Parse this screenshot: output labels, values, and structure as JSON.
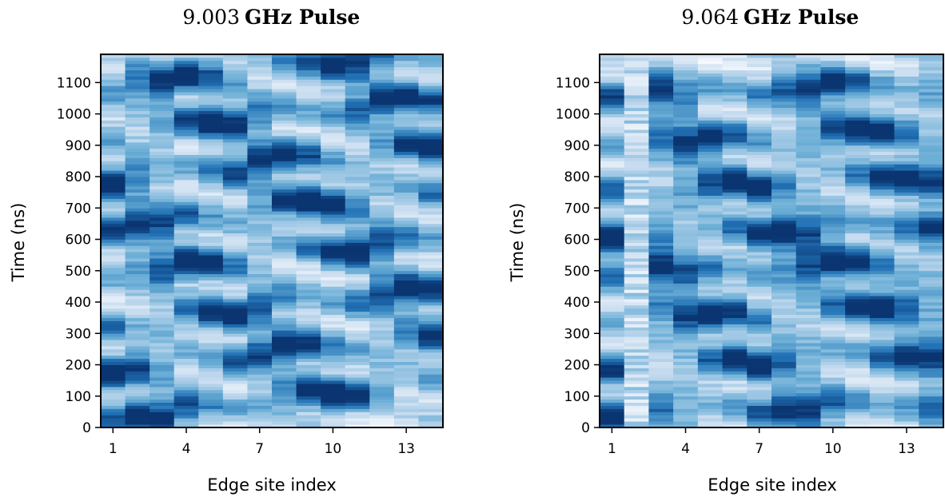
{
  "chart_data": [
    {
      "type": "heatmap",
      "title_value": "9.003",
      "title_text": "GHz Pulse",
      "xlabel": "Edge site index",
      "ylabel": "Time (ns)",
      "x_ticks": [
        "1",
        "4",
        "7",
        "10",
        "13"
      ],
      "y_ticks": [
        "0",
        "100",
        "200",
        "300",
        "400",
        "500",
        "600",
        "700",
        "800",
        "900",
        "1000",
        "1100"
      ],
      "sites": [
        1,
        2,
        3,
        4,
        5,
        6,
        7,
        8,
        9,
        10,
        11,
        12,
        13,
        14
      ],
      "xlim": [
        0.5,
        14.5
      ],
      "ylim": [
        0,
        1190
      ],
      "colormap": [
        "#ffffff",
        "#c6dbef",
        "#6baed6",
        "#2171b5",
        "#08306b"
      ],
      "grid": false,
      "intensity_profile": {
        "description_of_bands": "diagonal stripes of dark intensity drifting to later times with site index",
        "band_centers_ns": [
          30,
          180,
          330,
          490,
          640,
          790,
          940,
          1090
        ],
        "drift_ns_per_site": 9
      }
    },
    {
      "type": "heatmap",
      "title_value": "9.064",
      "title_text": "GHz Pulse",
      "xlabel": "Edge site index",
      "ylabel": "Time (ns)",
      "x_ticks": [
        "1",
        "4",
        "7",
        "10",
        "13"
      ],
      "y_ticks": [
        "0",
        "100",
        "200",
        "300",
        "400",
        "500",
        "600",
        "700",
        "800",
        "900",
        "1000",
        "1100"
      ],
      "sites": [
        1,
        2,
        3,
        4,
        5,
        6,
        7,
        8,
        9,
        10,
        11,
        12,
        13,
        14
      ],
      "xlim": [
        0.5,
        14.5
      ],
      "ylim": [
        0,
        1190
      ],
      "colormap": [
        "#ffffff",
        "#c6dbef",
        "#6baed6",
        "#2171b5",
        "#08306b"
      ],
      "grid": false,
      "intensity_profile": {
        "description_of_bands": "dark bands with slight upward drift; site 2 noisy and light",
        "band_centers_ns": [
          40,
          195,
          350,
          490,
          610,
          760,
          910,
          1060
        ],
        "drift_ns_per_site": 3
      }
    }
  ]
}
